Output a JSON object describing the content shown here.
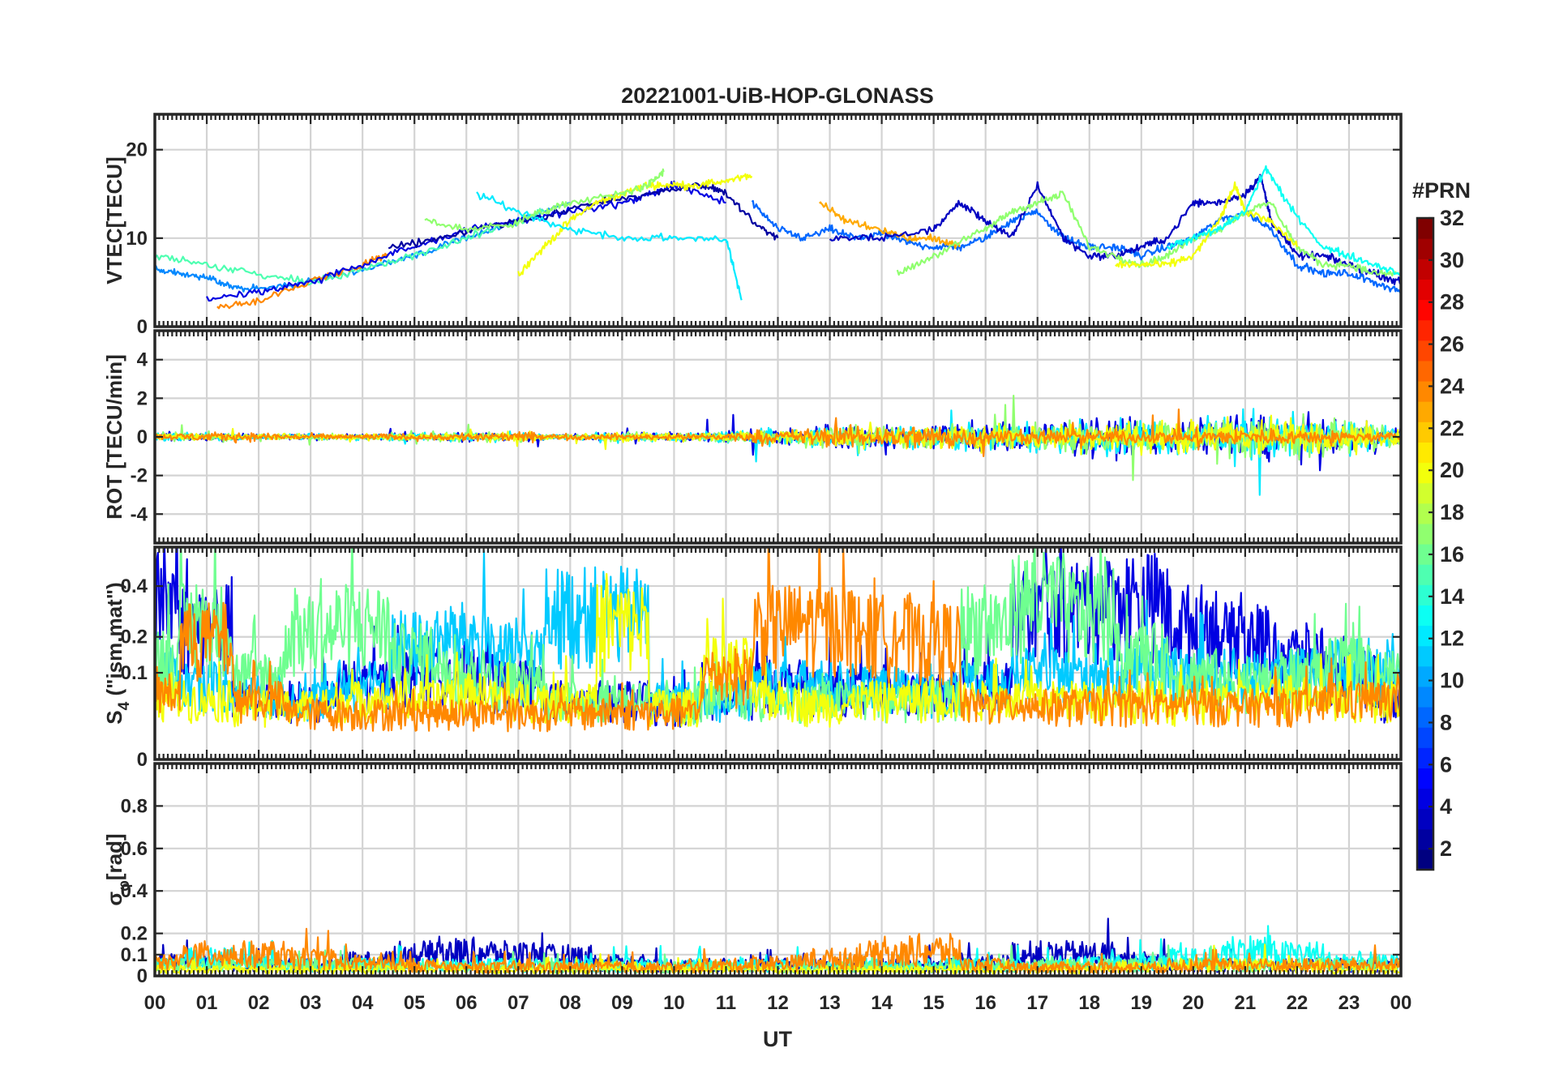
{
  "chart_data": {
    "type": "line",
    "title": "20221001-UiB-HOP-GLONASS",
    "xlabel": "UT",
    "x_tick_labels": [
      "00",
      "01",
      "02",
      "03",
      "04",
      "05",
      "06",
      "07",
      "08",
      "09",
      "10",
      "11",
      "12",
      "13",
      "14",
      "15",
      "16",
      "17",
      "18",
      "19",
      "20",
      "21",
      "22",
      "23",
      "00"
    ],
    "xlim": [
      0,
      24
    ],
    "grid": true,
    "colorbar": {
      "title": "#PRN",
      "range": [
        1,
        32
      ],
      "colormap": "jet",
      "tick_labels": [
        "2",
        "4",
        "6",
        "8",
        "10",
        "12",
        "14",
        "16",
        "18",
        "20",
        "22",
        "24",
        "26",
        "28",
        "30",
        "32"
      ]
    },
    "panels": [
      {
        "ylabel": "VTEC[TECU]",
        "ylim": [
          0,
          24
        ],
        "ytick_labels": [
          "0",
          "10",
          "20"
        ],
        "yticks": [
          0,
          10,
          20
        ],
        "series": [
          {
            "prn": 9,
            "x": [
              0,
              0.5,
              1,
              1.5,
              2,
              3,
              4,
              5,
              6,
              7,
              8
            ],
            "y": [
              6.5,
              6,
              5.5,
              4.5,
              4.3,
              5,
              6.5,
              8,
              10,
              12,
              14
            ]
          },
          {
            "prn": 15,
            "x": [
              0,
              1,
              2,
              3,
              4,
              5,
              6,
              7,
              7.5
            ],
            "y": [
              8,
              7,
              6,
              5,
              6.5,
              8,
              10,
              12,
              13
            ]
          },
          {
            "prn": 24,
            "x": [
              1.2,
              2,
              3,
              4,
              4.5
            ],
            "y": [
              2,
              3,
              5,
              7,
              8
            ]
          },
          {
            "prn": 4,
            "x": [
              1,
              2,
              3,
              4,
              5,
              6,
              7,
              8,
              9,
              9.6,
              10,
              11
            ],
            "y": [
              3,
              4,
              5,
              7,
              9,
              11,
              12,
              13,
              14,
              15,
              16,
              14
            ]
          },
          {
            "prn": 2,
            "x": [
              4.5,
              5.5,
              6.5,
              7.5,
              8.5,
              9.5,
              10.5,
              11,
              11.5,
              12
            ],
            "y": [
              9,
              10,
              11.5,
              12.5,
              14,
              15,
              16,
              15,
              12,
              10
            ]
          },
          {
            "prn": 20,
            "x": [
              7,
              7.5,
              8,
              8.5,
              9,
              9.5,
              10,
              10.5,
              11,
              11.5
            ],
            "y": [
              6,
              9,
              12,
              14,
              15,
              16,
              16,
              16,
              16.5,
              17
            ]
          },
          {
            "prn": 12,
            "x": [
              6.2,
              7,
              8,
              9,
              10,
              11,
              11.3
            ],
            "y": [
              15,
              13,
              11,
              10,
              10,
              10,
              3
            ]
          },
          {
            "prn": 17,
            "x": [
              5.2,
              6,
              6.8,
              7.5,
              8,
              9,
              9.5,
              9.8
            ],
            "y": [
              12,
              11,
              11.5,
              13,
              14,
              15,
              16,
              17.5
            ]
          },
          {
            "prn": 8,
            "x": [
              11.5,
              12,
              12.5,
              13,
              13.5,
              14,
              14.5,
              15,
              15.5,
              16,
              16.5,
              17,
              17.5,
              18,
              18.5,
              19,
              19.5,
              20,
              20.5,
              21,
              21.5,
              22,
              22.5,
              23,
              23.5,
              24
            ],
            "y": [
              14,
              11,
              10,
              11,
              10,
              10.5,
              9.5,
              9,
              9,
              10,
              12,
              13,
              10,
              9,
              9,
              8,
              9,
              10,
              12,
              13,
              11,
              7,
              6,
              6,
              5,
              4
            ]
          },
          {
            "prn": 23,
            "x": [
              12.8,
              13.3,
              14,
              14.5,
              15,
              15.5
            ],
            "y": [
              14,
              12,
              11,
              10,
              10,
              9
            ]
          },
          {
            "prn": 3,
            "x": [
              13,
              14,
              15,
              15.5,
              16,
              16.5,
              17,
              17.5,
              18,
              18.5,
              19,
              19.5,
              20,
              20.5,
              21,
              21.3,
              21.5,
              22,
              22.5,
              23,
              23.5,
              24
            ],
            "y": [
              10,
              10,
              11,
              14,
              12,
              10,
              16,
              10,
              8,
              8,
              9,
              10,
              14,
              14,
              15,
              17,
              12,
              8,
              8,
              7,
              6,
              5
            ]
          },
          {
            "prn": 17,
            "x": [
              14.3,
              15,
              16,
              16.5,
              17,
              17.5,
              18,
              18.5,
              19,
              19.5,
              20,
              20.5,
              21,
              21.5,
              22,
              22.5,
              23,
              23.5,
              24
            ],
            "y": [
              6,
              8,
              11,
              13,
              14,
              15,
              9,
              8,
              7,
              8,
              10,
              11,
              13,
              14,
              9,
              7,
              7,
              6,
              6
            ]
          },
          {
            "prn": 20,
            "x": [
              18.5,
              19,
              19.5,
              20,
              20.5,
              20.8,
              21,
              21.5,
              22
            ],
            "y": [
              7,
              7,
              7,
              8,
              12,
              16,
              13,
              12,
              9
            ]
          },
          {
            "prn": 13,
            "x": [
              19.5,
              20,
              20.5,
              21,
              21.4,
              21.8,
              22.5,
              23,
              23.5,
              24
            ],
            "y": [
              9,
              10,
              11,
              13,
              18,
              14,
              9,
              8,
              7,
              6
            ]
          }
        ]
      },
      {
        "ylabel": "ROT [TECU/min]",
        "ylim": [
          -5.5,
          5.5
        ],
        "ytick_labels": [
          "-4",
          "-2",
          "0",
          "2",
          "4"
        ],
        "yticks": [
          -4,
          -2,
          0,
          2,
          4
        ],
        "series": [
          {
            "prn": 4,
            "amplitude_by_hour": [
              0.3,
              0.3,
              0.2,
              0.2,
              0.2,
              0.3,
              0.4,
              0.3,
              0.2,
              0.3,
              0.3,
              0.4,
              0.7,
              0.9,
              0.8,
              0.9,
              1.0,
              1.2,
              1.2,
              1.3,
              1.2,
              1.6,
              1.4,
              1.0,
              0.8
            ]
          },
          {
            "prn": 12,
            "amplitude_by_hour": [
              0.3,
              0.3,
              0.2,
              0.2,
              0.2,
              0.3,
              0.4,
              0.3,
              0.2,
              0.3,
              0.3,
              0.4,
              0.6,
              0.8,
              0.8,
              0.8,
              0.9,
              1.0,
              1.1,
              1.2,
              1.2,
              1.8,
              1.5,
              1.0,
              0.8
            ]
          },
          {
            "prn": 17,
            "amplitude_by_hour": [
              0.3,
              0.3,
              0.2,
              0.2,
              0.2,
              0.3,
              0.4,
              0.3,
              0.2,
              0.3,
              0.3,
              0.4,
              0.5,
              0.7,
              0.7,
              0.8,
              0.9,
              1.0,
              1.1,
              1.1,
              1.1,
              1.7,
              1.5,
              1.0,
              0.8
            ]
          },
          {
            "prn": 20,
            "amplitude_by_hour": [
              0.2,
              0.2,
              0.2,
              0.2,
              0.2,
              0.2,
              0.3,
              0.3,
              0.2,
              0.3,
              0.3,
              0.4,
              0.5,
              0.6,
              0.7,
              0.8,
              0.9,
              0.9,
              1.0,
              1.1,
              1.1,
              1.4,
              1.2,
              0.9,
              0.7
            ]
          },
          {
            "prn": 24,
            "amplitude_by_hour": [
              0.2,
              0.3,
              0.3,
              0.2,
              0.2,
              0.2,
              0.3,
              0.3,
              0.2,
              0.2,
              0.2,
              0.3,
              0.5,
              0.7,
              0.8,
              0.9,
              0.6,
              0.5,
              0.5,
              0.5,
              0.5,
              0.6,
              0.5,
              0.4,
              0.3
            ]
          }
        ]
      },
      {
        "ylabel": "S4 (\"ism.mat\")",
        "ylabel_main": "S",
        "ylabel_sub": "4",
        "ylabel_rest": " (\"ism.mat\")",
        "ylim": [
          0,
          0.6
        ],
        "scale": "sqrt",
        "ytick_labels": [
          "0",
          "0.1",
          "0.2",
          "0.4"
        ],
        "yticks": [
          0,
          0.1,
          0.2,
          0.4
        ],
        "series": [
          {
            "prn": 4,
            "mean_level_by_hour": [
              0.35,
              0.25,
              0.05,
              0.05,
              0.08,
              0.1,
              0.1,
              0.08,
              0.05,
              0.05,
              0.04,
              0.05,
              0.08,
              0.07,
              0.06,
              0.06,
              0.08,
              0.3,
              0.33,
              0.35,
              0.25,
              0.2,
              0.15,
              0.1,
              0.05
            ]
          },
          {
            "prn": 11,
            "mean_level_by_hour": [
              0.1,
              0.08,
              0.06,
              0.05,
              0.08,
              0.18,
              0.2,
              0.15,
              0.3,
              0.3,
              0.05,
              0.05,
              0.08,
              0.08,
              0.07,
              0.06,
              0.08,
              0.1,
              0.1,
              0.12,
              0.1,
              0.1,
              0.1,
              0.12,
              0.1
            ]
          },
          {
            "prn": 16,
            "mean_level_by_hour": [
              0.15,
              0.25,
              0.1,
              0.22,
              0.25,
              0.15,
              0.1,
              0.08,
              0.05,
              0.05,
              0.04,
              0.05,
              0.05,
              0.05,
              0.05,
              0.05,
              0.25,
              0.35,
              0.3,
              0.15,
              0.1,
              0.08,
              0.1,
              0.12,
              0.1
            ]
          },
          {
            "prn": 20,
            "mean_level_by_hour": [
              0.05,
              0.05,
              0.04,
              0.04,
              0.05,
              0.05,
              0.06,
              0.05,
              0.05,
              0.25,
              0.04,
              0.12,
              0.05,
              0.04,
              0.05,
              0.05,
              0.05,
              0.05,
              0.05,
              0.05,
              0.04,
              0.05,
              0.06,
              0.05,
              0.05
            ]
          },
          {
            "prn": 24,
            "mean_level_by_hour": [
              0.06,
              0.2,
              0.05,
              0.03,
              0.03,
              0.03,
              0.03,
              0.03,
              0.03,
              0.03,
              0.03,
              0.1,
              0.25,
              0.25,
              0.22,
              0.2,
              0.04,
              0.04,
              0.04,
              0.04,
              0.04,
              0.04,
              0.04,
              0.05,
              0.05
            ]
          }
        ]
      },
      {
        "ylabel": "σφ[rad]",
        "ylabel_main": "σ",
        "ylabel_sub": "φ",
        "ylabel_rest": "[rad]",
        "ylim": [
          0,
          1.0
        ],
        "ytick_labels": [
          "0",
          "0.1",
          "0.2",
          "0.4",
          "0.6",
          "0.8"
        ],
        "yticks": [
          0,
          0.1,
          0.2,
          0.4,
          0.6,
          0.8
        ],
        "series": [
          {
            "prn": 3,
            "mean_level_by_hour": [
              0.06,
              0.06,
              0.05,
              0.05,
              0.07,
              0.1,
              0.11,
              0.1,
              0.09,
              0.06,
              0.05,
              0.05,
              0.05,
              0.05,
              0.05,
              0.05,
              0.06,
              0.1,
              0.1,
              0.07,
              0.05,
              0.05,
              0.05,
              0.05,
              0.05
            ]
          },
          {
            "prn": 13,
            "mean_level_by_hour": [
              0.05,
              0.08,
              0.06,
              0.05,
              0.05,
              0.05,
              0.05,
              0.05,
              0.05,
              0.05,
              0.05,
              0.05,
              0.05,
              0.05,
              0.05,
              0.05,
              0.05,
              0.05,
              0.06,
              0.06,
              0.08,
              0.12,
              0.1,
              0.07,
              0.06
            ]
          },
          {
            "prn": 16,
            "mean_level_by_hour": [
              0.05,
              0.05,
              0.05,
              0.05,
              0.05,
              0.04,
              0.04,
              0.04,
              0.04,
              0.04,
              0.04,
              0.04,
              0.04,
              0.04,
              0.04,
              0.04,
              0.05,
              0.05,
              0.05,
              0.05,
              0.05,
              0.05,
              0.05,
              0.05,
              0.05
            ]
          },
          {
            "prn": 20,
            "mean_level_by_hour": [
              0.03,
              0.03,
              0.03,
              0.03,
              0.03,
              0.03,
              0.03,
              0.03,
              0.03,
              0.04,
              0.03,
              0.03,
              0.03,
              0.03,
              0.03,
              0.03,
              0.03,
              0.03,
              0.03,
              0.04,
              0.05,
              0.05,
              0.04,
              0.03,
              0.03
            ]
          },
          {
            "prn": 24,
            "mean_level_by_hour": [
              0.06,
              0.1,
              0.1,
              0.08,
              0.06,
              0.05,
              0.04,
              0.04,
              0.04,
              0.04,
              0.04,
              0.05,
              0.06,
              0.08,
              0.1,
              0.12,
              0.05,
              0.04,
              0.04,
              0.04,
              0.05,
              0.05,
              0.05,
              0.05,
              0.05
            ]
          }
        ]
      }
    ]
  }
}
